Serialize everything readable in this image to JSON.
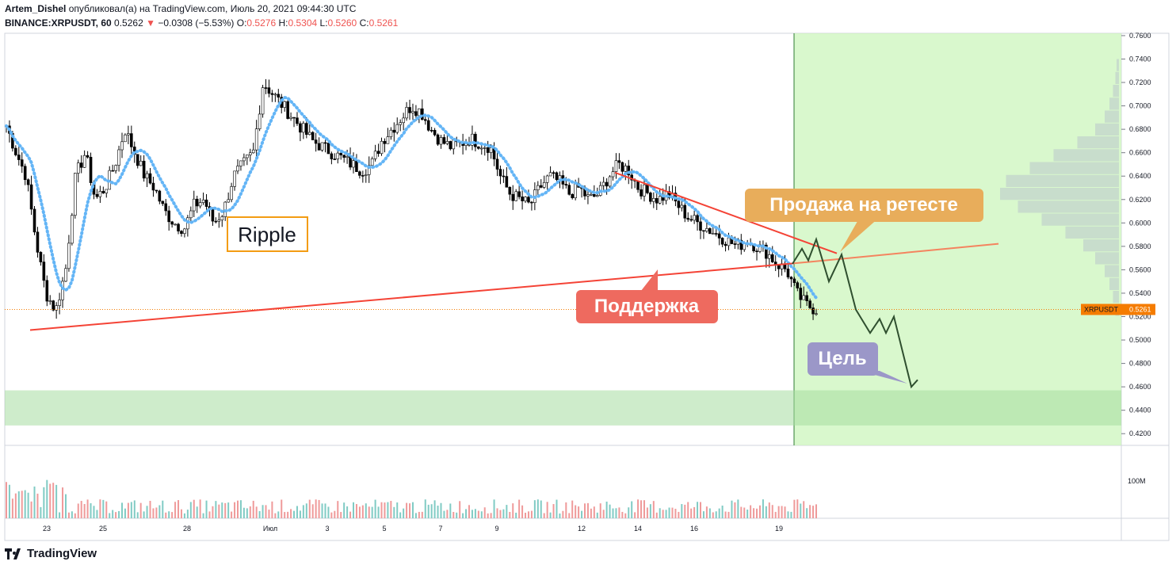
{
  "header": {
    "author": "Artem_Dishel",
    "published_text": "опубликовал(а) на TradingView.com, Июль 20, 2021 09:44:30 UTC",
    "symbol": "BINANCE:XRPUSDT, 60",
    "last": "0.5262",
    "change": "−0.0308 (−5.53%)",
    "o_label": "O:",
    "o": "0.5276",
    "h_label": "H:",
    "h": "0.5304",
    "l_label": "L:",
    "l": "0.5260",
    "c_label": "C:",
    "c": "0.5261"
  },
  "price_tag": {
    "symbol": "XRPUSDT",
    "value": "0.5261"
  },
  "annotations": {
    "ripple": "Ripple",
    "sell": "Продажа на ретесте",
    "support": "Поддержка",
    "target": "Цель"
  },
  "volume_label": "100M",
  "footer": {
    "brand": "TradingView"
  },
  "colors": {
    "up": "#000000",
    "down": "#000000",
    "ma": "#64b5f6",
    "trend": "#f44336",
    "forecast_zone": "#ccf5bc",
    "target_zone": "#b7e4b2",
    "sell_box": "#e8ad5b",
    "support_box": "#ee6a5f",
    "target_box": "#9b97c8",
    "price_tag": "#f57c00"
  },
  "chart_data": {
    "type": "candlestick",
    "x_tick_labels": [
      "23",
      "25",
      "28",
      "Июл",
      "3",
      "5",
      "7",
      "9",
      "12",
      "14",
      "16",
      "19"
    ],
    "y_tick_labels": [
      "0.7600",
      "0.7400",
      "0.7200",
      "0.7000",
      "0.6800",
      "0.6600",
      "0.6400",
      "0.6200",
      "0.6000",
      "0.5800",
      "0.5600",
      "0.5400",
      "0.5200",
      "0.5000",
      "0.4800",
      "0.4600",
      "0.4400",
      "0.4200"
    ],
    "ylim": [
      0.41,
      0.762
    ],
    "close_path": [
      0.683,
      0.66,
      0.64,
      0.585,
      0.54,
      0.525,
      0.56,
      0.64,
      0.66,
      0.62,
      0.63,
      0.65,
      0.68,
      0.66,
      0.64,
      0.63,
      0.61,
      0.6,
      0.595,
      0.615,
      0.62,
      0.6,
      0.61,
      0.64,
      0.65,
      0.66,
      0.72,
      0.71,
      0.7,
      0.69,
      0.68,
      0.67,
      0.665,
      0.66,
      0.655,
      0.65,
      0.645,
      0.65,
      0.67,
      0.68,
      0.69,
      0.7,
      0.695,
      0.68,
      0.67,
      0.665,
      0.668,
      0.672,
      0.668,
      0.665,
      0.64,
      0.625,
      0.62,
      0.615,
      0.63,
      0.64,
      0.635,
      0.625,
      0.63,
      0.62,
      0.625,
      0.64,
      0.65,
      0.645,
      0.63,
      0.625,
      0.62,
      0.625,
      0.615,
      0.605,
      0.6,
      0.595,
      0.59,
      0.585,
      0.58,
      0.585,
      0.58,
      0.575,
      0.565,
      0.56,
      0.54,
      0.53,
      0.526
    ],
    "support_line": {
      "from": [
        0.5085,
        0
      ],
      "to": [
        0.5822,
        1
      ]
    },
    "resistance_line": {
      "from": [
        0.643,
        0
      ],
      "to": [
        0.574,
        1
      ]
    },
    "forecast_path": [
      0.565,
      0.578,
      0.568,
      0.586,
      0.55,
      0.573,
      0.526,
      0.506,
      0.518,
      0.506,
      0.52,
      0.46,
      0.466
    ],
    "target_zone": [
      0.427,
      0.457
    ],
    "last_price": 0.5261,
    "volume_profile": [
      0.02,
      0.03,
      0.05,
      0.08,
      0.12,
      0.2,
      0.35,
      0.55,
      0.75,
      0.95,
      1.0,
      0.85,
      0.65,
      0.45,
      0.3,
      0.2,
      0.12,
      0.08,
      0.05,
      0.03
    ]
  }
}
